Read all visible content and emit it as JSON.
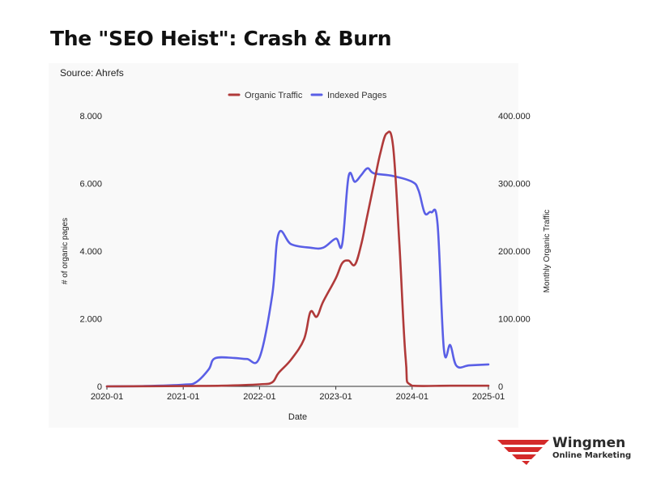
{
  "header": {
    "title": "The \"SEO Heist\": Crash & Burn"
  },
  "source_note": "Source: Ahrefs",
  "brand": {
    "name": "Wingmen",
    "subtitle": "Online Marketing"
  },
  "chart_data": {
    "type": "line",
    "xlabel": "Date",
    "ylabel_left": "# of organic pages",
    "ylabel_right": "Monthly Organic Traffic",
    "x_ticks": [
      "2020-01",
      "2021-01",
      "2022-01",
      "2023-01",
      "2024-01",
      "2025-01"
    ],
    "y_left_ticks": [
      "0",
      "2.000",
      "4.000",
      "6.000",
      "8.000"
    ],
    "y_right_ticks": [
      "0",
      "100.000",
      "200.000",
      "300.000",
      "400.000"
    ],
    "y_left_range": [
      0,
      8000
    ],
    "y_right_range": [
      0,
      400000
    ],
    "x_range": [
      "2020-01",
      "2025-01"
    ],
    "legend_position": "top",
    "grid": false,
    "series": [
      {
        "name": "Organic Traffic",
        "axis": "right",
        "color": "#b03a3a",
        "points": [
          [
            "2020-01",
            0
          ],
          [
            "2021-01",
            500
          ],
          [
            "2021-07",
            1000
          ],
          [
            "2022-01",
            3000
          ],
          [
            "2022-03",
            6000
          ],
          [
            "2022-04",
            20000
          ],
          [
            "2022-06",
            40000
          ],
          [
            "2022-08",
            70000
          ],
          [
            "2022-09",
            110000
          ],
          [
            "2022-10",
            103000
          ],
          [
            "2022-11",
            125000
          ],
          [
            "2023-01",
            160000
          ],
          [
            "2023-02",
            182000
          ],
          [
            "2023-03",
            186000
          ],
          [
            "2023-04",
            180000
          ],
          [
            "2023-05",
            210000
          ],
          [
            "2023-06",
            255000
          ],
          [
            "2023-07",
            300000
          ],
          [
            "2023-08",
            345000
          ],
          [
            "2023-09",
            374000
          ],
          [
            "2023-10",
            355000
          ],
          [
            "2023-11",
            210000
          ],
          [
            "2023-12",
            40000
          ],
          [
            "2024-01",
            1000
          ],
          [
            "2024-07",
            1000
          ],
          [
            "2025-01",
            1000
          ]
        ]
      },
      {
        "name": "Indexed Pages",
        "axis": "left",
        "color": "#5a5fe6",
        "points": [
          [
            "2020-01",
            0
          ],
          [
            "2020-07",
            10
          ],
          [
            "2021-01",
            50
          ],
          [
            "2021-03",
            120
          ],
          [
            "2021-05",
            500
          ],
          [
            "2021-06",
            830
          ],
          [
            "2021-09",
            840
          ],
          [
            "2021-11",
            810
          ],
          [
            "2022-01",
            850
          ],
          [
            "2022-03",
            2700
          ],
          [
            "2022-04",
            4520
          ],
          [
            "2022-06",
            4200
          ],
          [
            "2022-09",
            4100
          ],
          [
            "2022-11",
            4100
          ],
          [
            "2023-01",
            4370
          ],
          [
            "2023-02",
            4200
          ],
          [
            "2023-03",
            6200
          ],
          [
            "2023-04",
            6050
          ],
          [
            "2023-05",
            6250
          ],
          [
            "2023-06",
            6450
          ],
          [
            "2023-07",
            6300
          ],
          [
            "2023-10",
            6220
          ],
          [
            "2024-01",
            6050
          ],
          [
            "2024-02",
            5800
          ],
          [
            "2024-03",
            5120
          ],
          [
            "2024-04",
            5150
          ],
          [
            "2024-05",
            4800
          ],
          [
            "2024-06",
            1100
          ],
          [
            "2024-07",
            1220
          ],
          [
            "2024-08",
            600
          ],
          [
            "2024-10",
            620
          ],
          [
            "2025-01",
            650
          ]
        ]
      }
    ]
  }
}
